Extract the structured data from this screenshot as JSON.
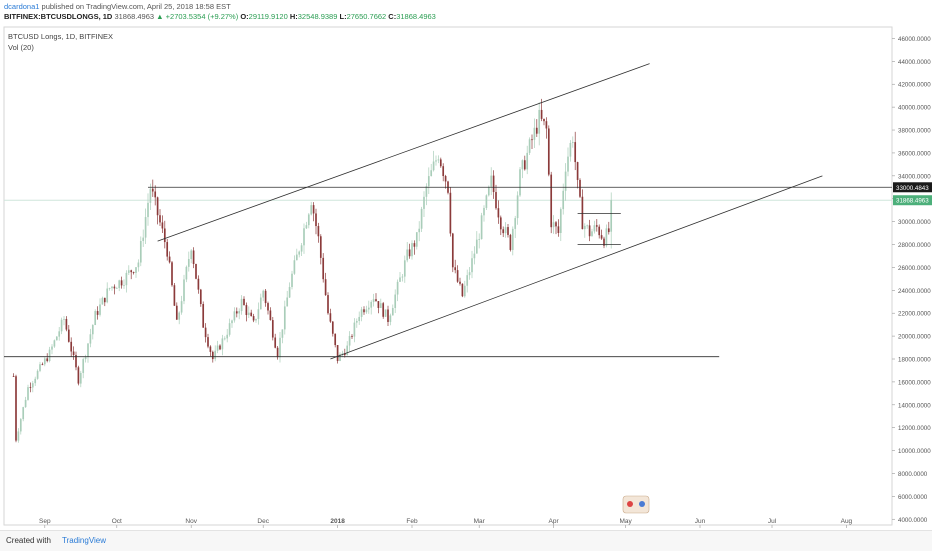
{
  "header": {
    "author": "dcardona1",
    "published": "published on TradingView.com, April 25, 2018 18:58 EST",
    "symbol": "BITFINEX:BTCUSDLONGS, 1D",
    "last": "31868.4963",
    "change": "▲ +2703.5354 (+9.27%)",
    "o_label": "O:",
    "o_val": "29119.9120",
    "h_label": "H:",
    "h_val": "32548.9389",
    "l_label": "L:",
    "l_val": "27650.7662",
    "c_label": "C:",
    "c_val": "31868.4963"
  },
  "legend": {
    "line1": "BTCUSD Longs, 1D, BITFINEX",
    "line2": "Vol (20)"
  },
  "footer": {
    "created": "Created with",
    "brand": "TradingView"
  },
  "colors": {
    "up": "#a9cdb9",
    "down": "#8b3a3a",
    "drawing": "#2f2f2f",
    "price_line": "#cfe6db",
    "marker_bg": "#1a1a1a",
    "price_marker": "#4caf7a"
  },
  "chart_data": {
    "type": "candlestick",
    "y_axis": {
      "min": 3500,
      "max": 47000,
      "ticks": [
        4000,
        6000,
        8000,
        10000,
        12000,
        14000,
        16000,
        18000,
        20000,
        22000,
        24000,
        26000,
        28000,
        30000,
        32000,
        34000,
        36000,
        38000,
        40000,
        42000,
        44000,
        46000
      ],
      "tick_labels": [
        "4000.0000",
        "6000.0000",
        "8000.0000",
        "10000.0000",
        "12000.0000",
        "14000.0000",
        "16000.0000",
        "18000.0000",
        "20000.0000",
        "22000.0000",
        "24000.0000",
        "26000.0000",
        "28000.0000",
        "30000.0000",
        "32000.0000",
        "34000.0000",
        "36000.0000",
        "38000.0000",
        "40000.0000",
        "42000.0000",
        "44000.0000",
        "46000.0000"
      ]
    },
    "x_axis": {
      "start": "2017-08-15",
      "end": "2018-08-20",
      "ticks": [
        "2017-09-01",
        "2017-10-01",
        "2017-11-01",
        "2017-12-01",
        "2018-01-01",
        "2018-02-01",
        "2018-03-01",
        "2018-04-01",
        "2018-05-01",
        "2018-06-01",
        "2018-07-01",
        "2018-08-01"
      ],
      "tick_labels": [
        "Sep",
        "Oct",
        "Nov",
        "Dec",
        "2018",
        "Feb",
        "Mar",
        "Apr",
        "May",
        "Jun",
        "Jul",
        "Aug"
      ]
    },
    "markers": [
      {
        "price": 33000.4843,
        "label": "33000.4843",
        "kind": "level"
      },
      {
        "price": 31868.4963,
        "label": "31868.4963",
        "kind": "last"
      }
    ],
    "drawings": [
      {
        "name": "channel-upper-line",
        "x1": "2017-10-18",
        "y1": 28300,
        "x2": "2018-05-11",
        "y2": 43800
      },
      {
        "name": "channel-lower-line",
        "x1": "2017-12-29",
        "y1": 18000,
        "x2": "2018-07-22",
        "y2": 34000
      },
      {
        "name": "resistance-33000-line",
        "x1": "2017-10-14",
        "y1": 33000,
        "x2": "2018-08-20",
        "y2": 33000
      },
      {
        "name": "support-18000-line",
        "x1": "2017-08-15",
        "y1": 18200,
        "x2": "2018-06-09",
        "y2": 18200
      },
      {
        "name": "range-top-line",
        "x1": "2018-04-11",
        "y1": 30700,
        "x2": "2018-04-29",
        "y2": 30700
      },
      {
        "name": "range-bottom-line",
        "x1": "2018-04-11",
        "y1": 28000,
        "x2": "2018-04-29",
        "y2": 28000
      }
    ],
    "anchors": [
      {
        "date": "2017-08-19",
        "price": 16500
      },
      {
        "date": "2017-08-20",
        "price": 11000
      },
      {
        "date": "2017-08-25",
        "price": 15500
      },
      {
        "date": "2017-09-03",
        "price": 18500
      },
      {
        "date": "2017-09-09",
        "price": 21500
      },
      {
        "date": "2017-09-15",
        "price": 16200
      },
      {
        "date": "2017-09-22",
        "price": 21800
      },
      {
        "date": "2017-09-28",
        "price": 24200
      },
      {
        "date": "2017-10-04",
        "price": 25000
      },
      {
        "date": "2017-10-10",
        "price": 26500
      },
      {
        "date": "2017-10-15",
        "price": 33000
      },
      {
        "date": "2017-10-22",
        "price": 27500
      },
      {
        "date": "2017-10-26",
        "price": 21000
      },
      {
        "date": "2017-11-01",
        "price": 28000
      },
      {
        "date": "2017-11-06",
        "price": 21000
      },
      {
        "date": "2017-11-10",
        "price": 18000
      },
      {
        "date": "2017-11-15",
        "price": 20000
      },
      {
        "date": "2017-11-22",
        "price": 23000
      },
      {
        "date": "2017-11-27",
        "price": 21000
      },
      {
        "date": "2017-12-01",
        "price": 24000
      },
      {
        "date": "2017-12-07",
        "price": 18500
      },
      {
        "date": "2017-12-12",
        "price": 24500
      },
      {
        "date": "2017-12-17",
        "price": 28500
      },
      {
        "date": "2017-12-21",
        "price": 32000
      },
      {
        "date": "2017-12-24",
        "price": 28500
      },
      {
        "date": "2017-12-28",
        "price": 22000
      },
      {
        "date": "2018-01-01",
        "price": 18000
      },
      {
        "date": "2018-01-05",
        "price": 19000
      },
      {
        "date": "2018-01-10",
        "price": 22000
      },
      {
        "date": "2018-01-16",
        "price": 23500
      },
      {
        "date": "2018-01-22",
        "price": 21500
      },
      {
        "date": "2018-01-30",
        "price": 27000
      },
      {
        "date": "2018-02-03",
        "price": 28500
      },
      {
        "date": "2018-02-07",
        "price": 33000
      },
      {
        "date": "2018-02-12",
        "price": 36000
      },
      {
        "date": "2018-02-16",
        "price": 33000
      },
      {
        "date": "2018-02-18",
        "price": 26000
      },
      {
        "date": "2018-02-22",
        "price": 23500
      },
      {
        "date": "2018-02-26",
        "price": 26500
      },
      {
        "date": "2018-03-01",
        "price": 29000
      },
      {
        "date": "2018-03-06",
        "price": 33500
      },
      {
        "date": "2018-03-10",
        "price": 30000
      },
      {
        "date": "2018-03-14",
        "price": 28000
      },
      {
        "date": "2018-03-18",
        "price": 34000
      },
      {
        "date": "2018-03-22",
        "price": 36500
      },
      {
        "date": "2018-03-26",
        "price": 39000
      },
      {
        "date": "2018-03-29",
        "price": 38000
      },
      {
        "date": "2018-03-31",
        "price": 30000
      },
      {
        "date": "2018-04-03",
        "price": 29000
      },
      {
        "date": "2018-04-06",
        "price": 35000
      },
      {
        "date": "2018-04-09",
        "price": 37500
      },
      {
        "date": "2018-04-11",
        "price": 33000
      },
      {
        "date": "2018-04-13",
        "price": 30000
      },
      {
        "date": "2018-04-16",
        "price": 29000
      },
      {
        "date": "2018-04-19",
        "price": 29500
      },
      {
        "date": "2018-04-22",
        "price": 28500
      },
      {
        "date": "2018-04-24",
        "price": 29119.912
      },
      {
        "date": "2018-04-25",
        "price": 31868.4963
      }
    ],
    "last_candle": {
      "date": "2018-04-25",
      "o": 29119.912,
      "h": 32548.9389,
      "l": 27650.7662,
      "c": 31868.4963
    }
  }
}
